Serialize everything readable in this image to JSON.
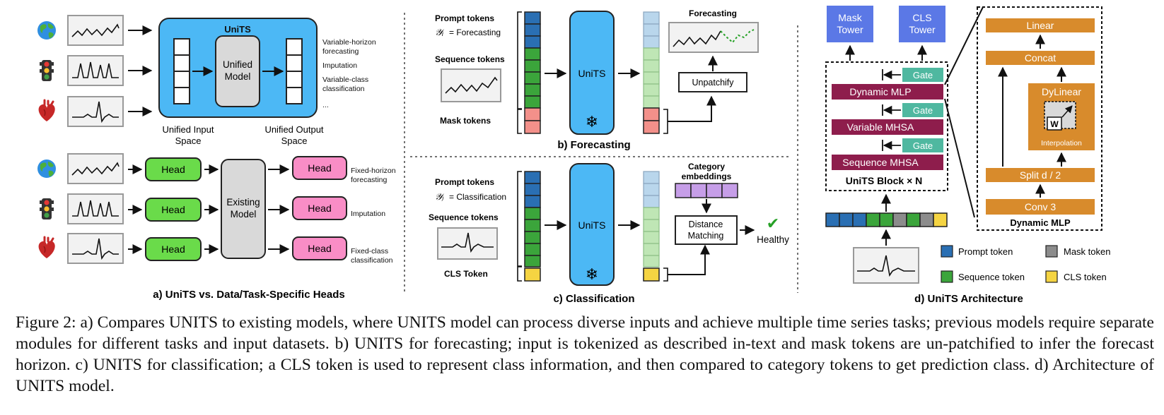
{
  "panel_a": {
    "unified_model_box_title": "UniTS",
    "unified_model_label": [
      "Unified",
      "Model"
    ],
    "unified_input_space": [
      "Unified Input",
      "Space"
    ],
    "unified_output_space": [
      "Unified Output",
      "Space"
    ],
    "unified_tasks": [
      "Variable-horizon",
      "forecasting",
      "Imputation",
      "Variable-class",
      "classification",
      "..."
    ],
    "head_label": "Head",
    "existing_model_label": [
      "Existing",
      "Model"
    ],
    "fixed_tasks": [
      "Fixed-horizon",
      "forecasting",
      "Imputation",
      "Fixed-class",
      "classification"
    ],
    "panel_title": "a) UniTS vs. Data/Task-Specific Heads"
  },
  "panel_b": {
    "prompt_tokens_label": "Prompt tokens",
    "prompt_formula_sym": "𝒴ᵢ",
    "prompt_formula_text": "= Forecasting",
    "sequence_tokens_label": "Sequence tokens",
    "mask_tokens_label": "Mask tokens",
    "model_label": "UniTS",
    "snowflake": "❄",
    "output_title": "Forecasting",
    "unpatchify_label": "Unpatchify",
    "panel_title": "b) Forecasting"
  },
  "panel_c": {
    "prompt_tokens_label": "Prompt tokens",
    "prompt_formula_sym": "𝒴ⱼ",
    "prompt_formula_text": "= Classification",
    "sequence_tokens_label": "Sequence tokens",
    "cls_token_label": "CLS Token",
    "model_label": "UniTS",
    "snowflake": "❄",
    "category_embeddings": [
      "Category",
      "embeddings"
    ],
    "distance_matching": [
      "Distance",
      "Matching"
    ],
    "result_label": "Healthy",
    "checkmark": "✔",
    "panel_title": "c) Classification"
  },
  "panel_d": {
    "mask_tower": [
      "Mask",
      "Tower"
    ],
    "cls_tower": [
      "CLS",
      "Tower"
    ],
    "gate_label": "Gate",
    "dynamic_mlp_label": "Dynamic MLP",
    "variable_mhsa_label": "Variable MHSA",
    "sequence_mhsa_label": "Sequence MHSA",
    "block_label": "UniTS Block × N",
    "detail_linear": "Linear",
    "detail_concat": "Concat",
    "detail_dylinear": "DyLinear",
    "detail_w": "W",
    "detail_interpolation": "Interpolation",
    "detail_split": "Split d / 2",
    "detail_conv": "Conv 3",
    "detail_title": "Dynamic MLP",
    "legend": [
      {
        "label": "Prompt token",
        "color": "#2a6fb3"
      },
      {
        "label": "Mask token",
        "color": "#8c8c8c"
      },
      {
        "label": "Sequence token",
        "color": "#3ba53b"
      },
      {
        "label": "CLS token",
        "color": "#f5d442"
      }
    ],
    "panel_title": "d) UniTS Architecture"
  },
  "colors": {
    "unified_blue": "#4cb8f5",
    "head_green": "#6adb4a",
    "head_pink": "#f98dc6",
    "existing_gray": "#d9d9d9",
    "tower_blue": "#5b78e6",
    "block_maroon": "#8e1d4c",
    "gate_teal": "#4fb8a0",
    "detail_orange": "#d88b2c",
    "prompt_blue": "#2a6fb3",
    "sequence_green": "#3ba53b",
    "mask_salmon": "#f3908a",
    "cls_yellow": "#f5d442",
    "category_purple": "#c69ee8",
    "light_blue_out": "#b9d6ec",
    "light_green_out": "#bfe6b5",
    "check_green": "#27a127"
  },
  "icons": [
    "globe-icon",
    "traffic-light-icon",
    "heart-icon",
    "snowflake-icon",
    "checkmark-icon"
  ],
  "caption": {
    "part1": "Figure 2: a) Compares ",
    "units_small": "UNITS",
    "part2": " to existing models, where ",
    "part3": " model can process diverse inputs and achieve multiple time series tasks; previous models require separate modules for different tasks and input datasets. b) ",
    "part4": " for forecasting; input is tokenized as described in-text and mask tokens are un-patchified to infer the forecast horizon. c) ",
    "part5": " for classification; a CLS token is used to represent class information, and then compared to category tokens to get prediction class. d) Architecture of ",
    "part6": " model."
  }
}
